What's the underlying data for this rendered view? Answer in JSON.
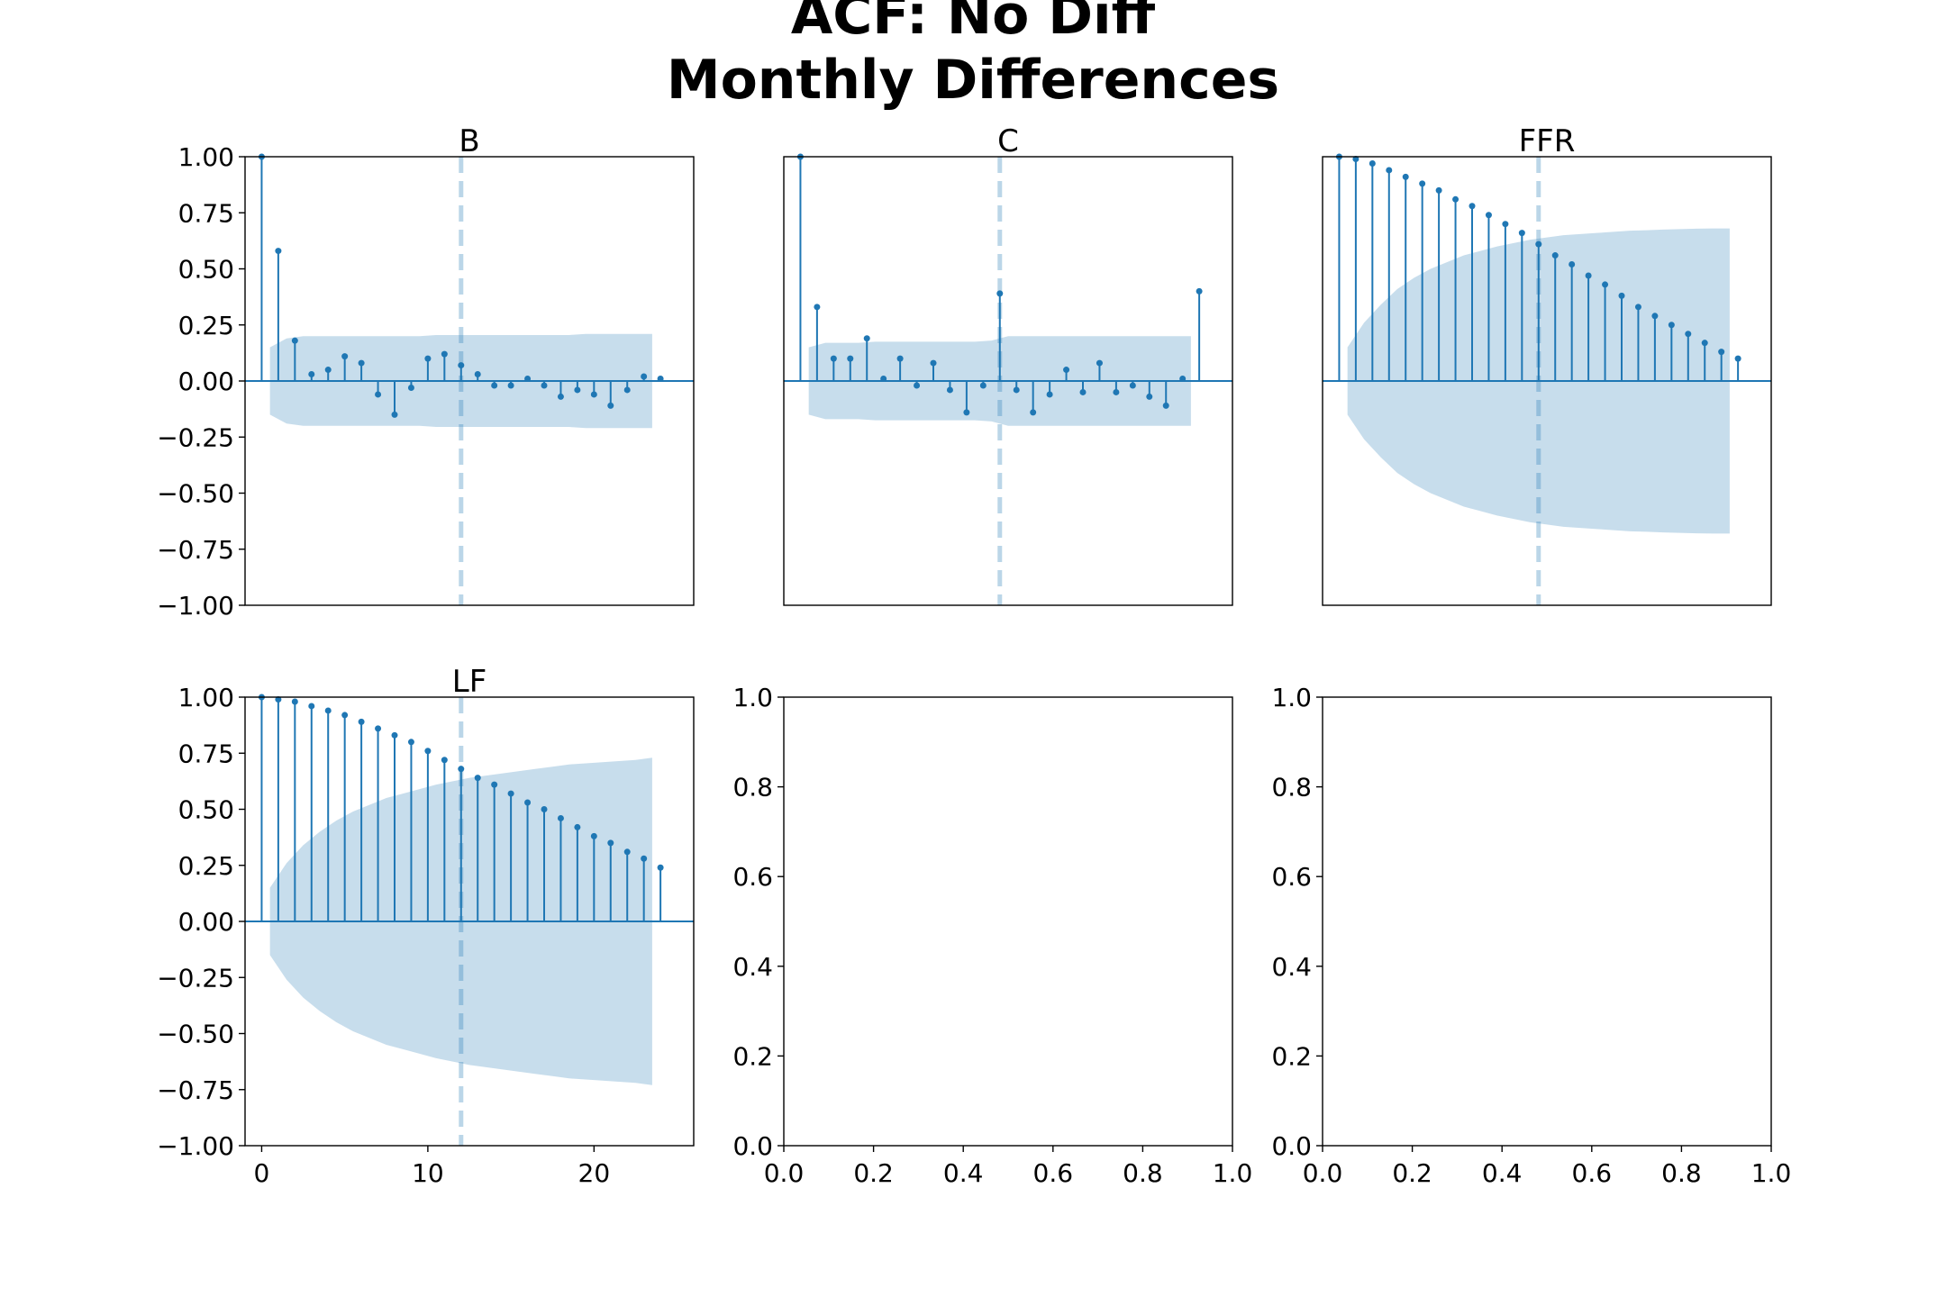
{
  "figure": {
    "title_line1": "ACF: No Diff",
    "title_line2": "Monthly Differences"
  },
  "colors": {
    "stem": "#1f77b4",
    "confidence_band": "#1f77b4",
    "band_opacity": 0.25,
    "axis": "#000000"
  },
  "chart_data": [
    {
      "type": "stem",
      "title": "B",
      "xlim": [
        -1,
        26
      ],
      "ylim": [
        -1,
        1
      ],
      "show_x_ticks": false,
      "y_ticks": [
        "1.00",
        "0.75",
        "0.50",
        "0.25",
        "0.00",
        "−0.25",
        "−0.50",
        "−0.75",
        "−1.00"
      ],
      "y_tick_values": [
        1,
        0.75,
        0.5,
        0.25,
        0,
        -0.25,
        -0.5,
        -0.75,
        -1
      ],
      "vline_x": 12,
      "lags": [
        0,
        1,
        2,
        3,
        4,
        5,
        6,
        7,
        8,
        9,
        10,
        11,
        12,
        13,
        14,
        15,
        16,
        17,
        18,
        19,
        20,
        21,
        22,
        23,
        24
      ],
      "acf": [
        1.0,
        0.58,
        0.18,
        0.03,
        0.05,
        0.11,
        0.08,
        -0.06,
        -0.15,
        -0.03,
        0.1,
        0.12,
        0.07,
        0.03,
        -0.02,
        -0.02,
        0.01,
        -0.02,
        -0.07,
        -0.04,
        -0.06,
        -0.11,
        -0.04,
        0.02,
        0.01
      ],
      "confint": [
        0.15,
        0.19,
        0.2,
        0.2,
        0.2,
        0.2,
        0.2,
        0.2,
        0.2,
        0.2,
        0.205,
        0.205,
        0.205,
        0.205,
        0.205,
        0.205,
        0.205,
        0.205,
        0.205,
        0.21,
        0.21,
        0.21,
        0.21,
        0.21
      ]
    },
    {
      "type": "stem",
      "title": "C",
      "xlim": [
        -1,
        26
      ],
      "ylim": [
        -1,
        1
      ],
      "show_x_ticks": false,
      "show_y_ticks": false,
      "vline_x": 12,
      "lags": [
        0,
        1,
        2,
        3,
        4,
        5,
        6,
        7,
        8,
        9,
        10,
        11,
        12,
        13,
        14,
        15,
        16,
        17,
        18,
        19,
        20,
        21,
        22,
        23,
        24
      ],
      "acf": [
        1.0,
        0.33,
        0.1,
        0.1,
        0.19,
        0.01,
        0.1,
        -0.02,
        0.08,
        -0.04,
        -0.14,
        -0.02,
        0.39,
        -0.04,
        -0.14,
        -0.06,
        0.05,
        -0.05,
        0.08,
        -0.05,
        -0.02,
        -0.07,
        -0.11,
        0.01,
        0.4
      ],
      "confint": [
        0.15,
        0.17,
        0.17,
        0.17,
        0.175,
        0.175,
        0.175,
        0.175,
        0.175,
        0.175,
        0.175,
        0.18,
        0.2,
        0.2,
        0.2,
        0.2,
        0.2,
        0.2,
        0.2,
        0.2,
        0.2,
        0.2,
        0.2,
        0.2
      ]
    },
    {
      "type": "stem",
      "title": "FFR",
      "xlim": [
        -1,
        26
      ],
      "ylim": [
        -1,
        1
      ],
      "show_x_ticks": false,
      "show_y_ticks": false,
      "vline_x": 12,
      "lags": [
        0,
        1,
        2,
        3,
        4,
        5,
        6,
        7,
        8,
        9,
        10,
        11,
        12,
        13,
        14,
        15,
        16,
        17,
        18,
        19,
        20,
        21,
        22,
        23,
        24
      ],
      "acf": [
        1.0,
        0.99,
        0.97,
        0.94,
        0.91,
        0.88,
        0.85,
        0.81,
        0.78,
        0.74,
        0.7,
        0.66,
        0.61,
        0.56,
        0.52,
        0.47,
        0.43,
        0.38,
        0.33,
        0.29,
        0.25,
        0.21,
        0.17,
        0.13,
        0.1
      ],
      "confint": [
        0.15,
        0.26,
        0.34,
        0.41,
        0.46,
        0.5,
        0.53,
        0.56,
        0.58,
        0.6,
        0.615,
        0.63,
        0.64,
        0.65,
        0.655,
        0.66,
        0.665,
        0.67,
        0.672,
        0.675,
        0.677,
        0.679,
        0.68,
        0.68
      ]
    },
    {
      "type": "stem",
      "title": "LF",
      "xlim": [
        -1,
        26
      ],
      "ylim": [
        -1,
        1
      ],
      "x_ticks": [
        "0",
        "10",
        "20"
      ],
      "x_tick_values": [
        0,
        10,
        20
      ],
      "y_ticks": [
        "1.00",
        "0.75",
        "0.50",
        "0.25",
        "0.00",
        "−0.25",
        "−0.50",
        "−0.75",
        "−1.00"
      ],
      "y_tick_values": [
        1,
        0.75,
        0.5,
        0.25,
        0,
        -0.25,
        -0.5,
        -0.75,
        -1
      ],
      "vline_x": 12,
      "lags": [
        0,
        1,
        2,
        3,
        4,
        5,
        6,
        7,
        8,
        9,
        10,
        11,
        12,
        13,
        14,
        15,
        16,
        17,
        18,
        19,
        20,
        21,
        22,
        23,
        24
      ],
      "acf": [
        1.0,
        0.99,
        0.98,
        0.96,
        0.94,
        0.92,
        0.89,
        0.86,
        0.83,
        0.8,
        0.76,
        0.72,
        0.68,
        0.64,
        0.61,
        0.57,
        0.53,
        0.5,
        0.46,
        0.42,
        0.38,
        0.35,
        0.31,
        0.28,
        0.24
      ],
      "confint": [
        0.15,
        0.26,
        0.34,
        0.4,
        0.45,
        0.49,
        0.52,
        0.55,
        0.57,
        0.59,
        0.61,
        0.625,
        0.64,
        0.65,
        0.66,
        0.67,
        0.68,
        0.69,
        0.7,
        0.705,
        0.71,
        0.715,
        0.72,
        0.73
      ]
    },
    {
      "type": "empty",
      "title": "",
      "xlim": [
        0,
        1
      ],
      "ylim": [
        0,
        1
      ],
      "x_ticks": [
        "0.0",
        "0.2",
        "0.4",
        "0.6",
        "0.8",
        "1.0"
      ],
      "x_tick_values": [
        0,
        0.2,
        0.4,
        0.6,
        0.8,
        1.0
      ],
      "y_ticks": [
        "1.0",
        "0.8",
        "0.6",
        "0.4",
        "0.2",
        "0.0"
      ],
      "y_tick_values": [
        1.0,
        0.8,
        0.6,
        0.4,
        0.2,
        0.0
      ]
    },
    {
      "type": "empty",
      "title": "",
      "xlim": [
        0,
        1
      ],
      "ylim": [
        0,
        1
      ],
      "x_ticks": [
        "0.0",
        "0.2",
        "0.4",
        "0.6",
        "0.8",
        "1.0"
      ],
      "x_tick_values": [
        0,
        0.2,
        0.4,
        0.6,
        0.8,
        1.0
      ],
      "y_ticks": [
        "1.0",
        "0.8",
        "0.6",
        "0.4",
        "0.2",
        "0.0"
      ],
      "y_tick_values": [
        1.0,
        0.8,
        0.6,
        0.4,
        0.2,
        0.0
      ]
    }
  ]
}
